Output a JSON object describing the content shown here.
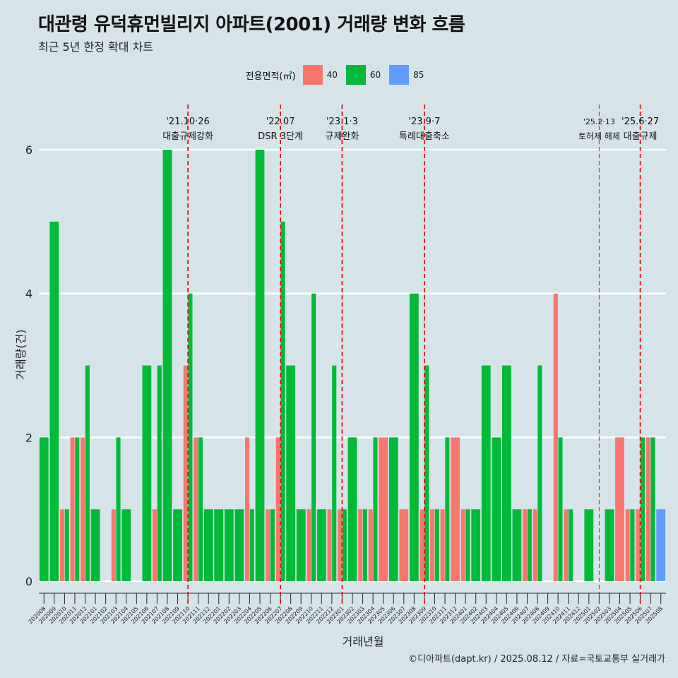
{
  "chart_data": {
    "type": "bar",
    "title": "대관령 유덕휴먼빌리지 아파트(2001) 거래량 변화 흐름",
    "subtitle": "최근 5년 한정 확대 차트",
    "xlabel": "거래년월",
    "ylabel": "거래량(건)",
    "ylim": [
      0,
      6
    ],
    "yticks": [
      0,
      2,
      4,
      6
    ],
    "legend_title": "전용면적(㎡)",
    "legend_position": "top",
    "caption": "©디아파트(dapt.kr) / 2025.08.12 / 자료=국토교통부 실거래가",
    "categories": [
      "202008",
      "202009",
      "202010",
      "202011",
      "202012",
      "202101",
      "202102",
      "202103",
      "202104",
      "202105",
      "202106",
      "202107",
      "202108",
      "202109",
      "202110",
      "202111",
      "202112",
      "202201",
      "202202",
      "202203",
      "202204",
      "202205",
      "202206",
      "202207",
      "202208",
      "202209",
      "202210",
      "202211",
      "202212",
      "202301",
      "202302",
      "202303",
      "202304",
      "202305",
      "202306",
      "202307",
      "202308",
      "202309",
      "202310",
      "202311",
      "202312",
      "202401",
      "202402",
      "202403",
      "202404",
      "202405",
      "202406",
      "202407",
      "202408",
      "202409",
      "202410",
      "202411",
      "202412",
      "202501",
      "202502",
      "202503",
      "202504",
      "202505",
      "202506",
      "202507",
      "202508"
    ],
    "series": [
      {
        "name": "40",
        "color": "#f8766d",
        "values": [
          0,
          0,
          1,
          2,
          2,
          0,
          0,
          1,
          0,
          0,
          0,
          1,
          0,
          0,
          3,
          2,
          0,
          0,
          0,
          0,
          2,
          0,
          1,
          2,
          0,
          0,
          1,
          0,
          1,
          1,
          0,
          1,
          1,
          2,
          0,
          1,
          0,
          1,
          1,
          1,
          2,
          1,
          0,
          0,
          0,
          0,
          0,
          1,
          1,
          0,
          4,
          1,
          0,
          0,
          0,
          0,
          2,
          1,
          1,
          2,
          0
        ]
      },
      {
        "name": "60",
        "color": "#00ba38",
        "values": [
          2,
          5,
          1,
          2,
          3,
          1,
          0,
          2,
          1,
          0,
          3,
          3,
          6,
          1,
          4,
          2,
          1,
          1,
          1,
          1,
          1,
          6,
          1,
          5,
          3,
          1,
          4,
          1,
          3,
          1,
          2,
          1,
          2,
          0,
          2,
          0,
          4,
          3,
          1,
          2,
          0,
          1,
          1,
          3,
          2,
          3,
          1,
          1,
          3,
          0,
          2,
          1,
          0,
          1,
          0,
          1,
          0,
          1,
          2,
          2,
          0
        ]
      },
      {
        "name": "85",
        "color": "#619cff",
        "values": [
          0,
          0,
          0,
          0,
          0,
          0,
          0,
          0,
          0,
          0,
          0,
          0,
          0,
          0,
          0,
          0,
          0,
          0,
          0,
          0,
          0,
          0,
          0,
          0,
          0,
          0,
          0,
          0,
          0,
          0,
          0,
          0,
          0,
          0,
          0,
          0,
          0,
          0,
          0,
          0,
          0,
          0,
          0,
          0,
          0,
          0,
          0,
          0,
          0,
          0,
          0,
          0,
          0,
          0,
          0,
          0,
          0,
          0,
          0,
          0,
          1
        ]
      }
    ],
    "annotations": [
      {
        "x": "202110",
        "line1": "'21.10·26",
        "line2": "대출규제강화",
        "style": "dashed-bold"
      },
      {
        "x": "202207",
        "line1": "'22.07",
        "line2": "DSR 3단계",
        "style": "dashed-bold"
      },
      {
        "x": "202301",
        "line1": "'23.1·3",
        "line2": "규제완화",
        "style": "dashed-bold"
      },
      {
        "x": "202309",
        "line1": "'23.9·7",
        "line2": "특례대출축소",
        "style": "dashed-bold"
      },
      {
        "x": "202502",
        "line1": "'25.2·13",
        "line2": "토허제 해제",
        "style": "dashed-thin"
      },
      {
        "x": "202506",
        "line1": "'25.6·27",
        "line2": "대출규제",
        "style": "dashed-bold"
      }
    ],
    "grid": true
  }
}
